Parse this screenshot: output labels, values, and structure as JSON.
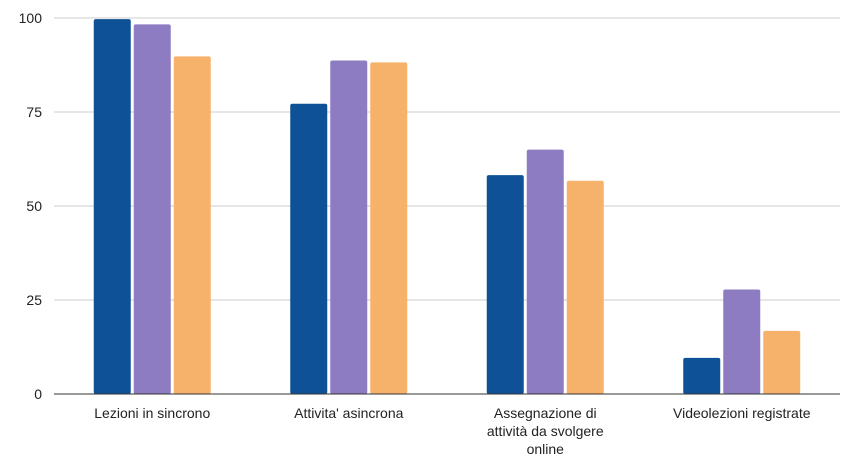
{
  "chart_data": {
    "type": "bar",
    "title": "",
    "xlabel": "",
    "ylabel": "",
    "ylim": [
      0,
      100
    ],
    "yticks": [
      0,
      25,
      50,
      75,
      100
    ],
    "ytick_labels": [
      "0",
      "25",
      "50",
      "75",
      "100"
    ],
    "grid": true,
    "legend": "none",
    "categories": [
      [
        "Lezioni in sincrono"
      ],
      [
        "Attivita' asincrona"
      ],
      [
        "Assegnazione di",
        "attività da svolgere",
        "online"
      ],
      [
        "Videolezioni registrate"
      ]
    ],
    "series": [
      {
        "color": "#0f5196",
        "values": [
          99.7,
          77.2,
          58.2,
          9.6
        ]
      },
      {
        "color": "#8e7cc3",
        "values": [
          98.3,
          88.7,
          65.0,
          27.8
        ]
      },
      {
        "color": "#f6b26b",
        "values": [
          89.8,
          88.2,
          56.7,
          16.8
        ]
      }
    ]
  }
}
